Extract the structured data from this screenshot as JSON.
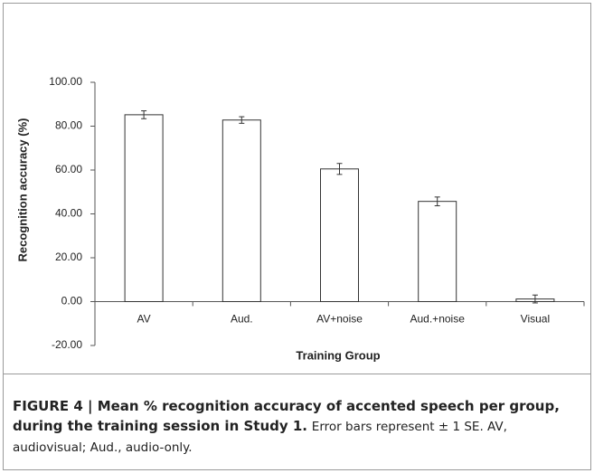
{
  "chart_data": {
    "type": "bar",
    "categories": [
      "AV",
      "Aud.",
      "AV+noise",
      "Aud.+noise",
      "Visual"
    ],
    "values": [
      85.2,
      82.8,
      60.5,
      45.7,
      1.2
    ],
    "errors": [
      1.8,
      1.5,
      2.5,
      2.0,
      1.8
    ],
    "color": "#ffffff",
    "ylim": [
      -20,
      100
    ],
    "yticks": [
      {
        "value": -20,
        "label": "-20.00"
      },
      {
        "value": 0,
        "label": "0.00"
      },
      {
        "value": 20,
        "label": "20.00"
      },
      {
        "value": 40,
        "label": "40.00"
      },
      {
        "value": 60,
        "label": "60.00"
      },
      {
        "value": 80,
        "label": "80.00"
      },
      {
        "value": 100,
        "label": "100.00"
      }
    ],
    "y_label": "Recognition accuracy (%)",
    "x_label": "Training Group",
    "grid": false
  },
  "caption": {
    "title": "FIGURE 4 | Mean % recognition accuracy of accented speech per group, during the training session in Study 1.",
    "text": "Error bars represent ± 1 SE. AV, audiovisual; Aud., audio-only."
  }
}
